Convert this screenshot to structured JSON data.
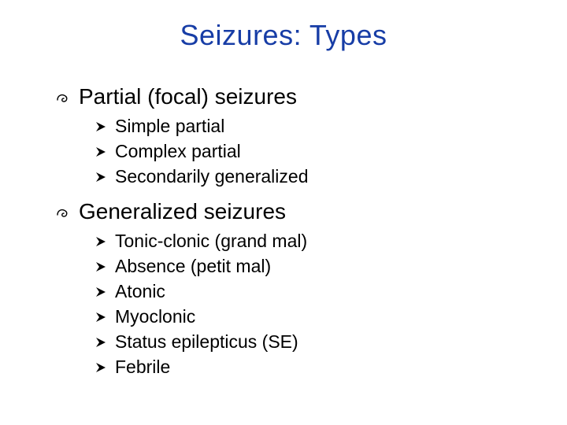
{
  "title": {
    "text": "Seizures: Types",
    "color": "#173da6",
    "fontsize": 36
  },
  "text_color": "#000000",
  "background_color": "#ffffff",
  "level1_bullet_glyph": "་",
  "level2_bullet_glyph": "➢",
  "sections": [
    {
      "label": "Partial (focal) seizures",
      "items": [
        {
          "label": "Simple partial"
        },
        {
          "label": "Complex partial"
        },
        {
          "label": "Secondarily generalized"
        }
      ]
    },
    {
      "label": "Generalized seizures",
      "items": [
        {
          "label": "Tonic-clonic (grand mal)"
        },
        {
          "label": "Absence (petit mal)"
        },
        {
          "label": "Atonic"
        },
        {
          "label": "Myoclonic"
        },
        {
          "label": "Status epilepticus (SE)"
        },
        {
          "label": "Febrile"
        }
      ]
    }
  ]
}
